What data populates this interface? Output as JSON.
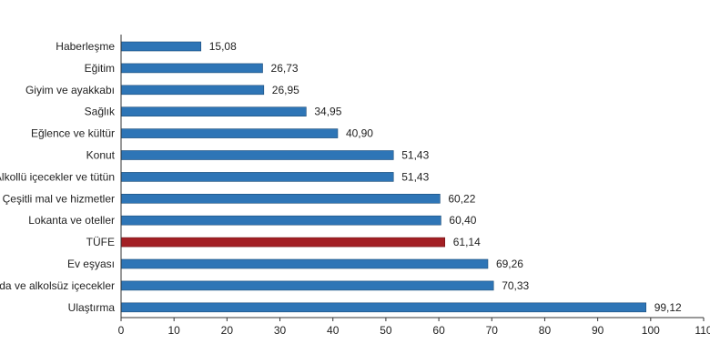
{
  "chart_data": {
    "type": "bar",
    "orientation": "horizontal",
    "categories": [
      "Haberleşme",
      "Eğitim",
      "Giyim ve ayakkabı",
      "Sağlık",
      "Eğlence ve kültür",
      "Konut",
      "Alkollü içecekler ve tütün",
      "Çeşitli mal ve hizmetler",
      "Lokanta ve oteller",
      "TÜFE",
      "Ev eşyası",
      "Gıda ve alkolsüz içecekler",
      "Ulaştırma"
    ],
    "values": [
      15.08,
      26.73,
      26.95,
      34.95,
      40.9,
      51.43,
      51.43,
      60.22,
      60.4,
      61.14,
      69.26,
      70.33,
      99.12
    ],
    "value_labels": [
      "15,08",
      "26,73",
      "26,95",
      "34,95",
      "40,90",
      "51,43",
      "51,43",
      "60,22",
      "60,40",
      "61,14",
      "69,26",
      "70,33",
      "99,12"
    ],
    "highlight_category": "TÜFE",
    "xlim": [
      0,
      110
    ],
    "xticks": [
      0,
      10,
      20,
      30,
      40,
      50,
      60,
      70,
      80,
      90,
      100,
      110
    ],
    "xtick_labels": [
      "0",
      "10",
      "20",
      "30",
      "40",
      "50",
      "60",
      "70",
      "80",
      "90",
      "100",
      "110"
    ],
    "colors": {
      "bar": "#2E75B6",
      "bar_edge": "#1F4E79",
      "highlight": "#A31F24",
      "highlight_edge": "#6E1418",
      "axis": "#333333"
    },
    "grid": false,
    "legend": "none"
  }
}
